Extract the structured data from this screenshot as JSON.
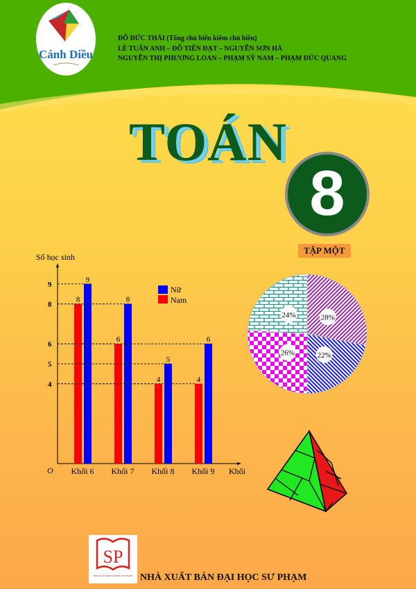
{
  "series_title": "Cánh Diều",
  "authors": [
    "ĐỖ ĐỨC THÁI (Tổng chủ biên kiêm chủ biên)",
    "LÊ TUẤN ANH – ĐỖ TIẾN ĐẠT – NGUYỄN SƠN HÀ",
    "NGUYỄN THỊ PHƯƠNG LOAN – PHẠM SỸ NAM – PHẠM ĐỨC QUANG"
  ],
  "title": "TOÁN",
  "grade": "8",
  "volume": "TẬP MỘT",
  "publisher": {
    "name": "NHÀ XUẤT BẢN ĐẠI HỌC SƯ PHẠM",
    "logo_text": "NHÀ XUẤT BẢN ĐẠI HỌC SƯ PHẠM"
  },
  "colors": {
    "title": "#0c5a1c",
    "header_green": "#4cb000",
    "nu": "#0000ff",
    "nam": "#ff0000"
  },
  "chart_data": [
    {
      "type": "bar",
      "ylabel": "Số học sinh",
      "xlabel": "Khối",
      "origin_label": "O",
      "categories": [
        "Khối 6",
        "Khối 7",
        "Khối 8",
        "Khối 9"
      ],
      "yticks": [
        4,
        5,
        6,
        8,
        9
      ],
      "series": [
        {
          "name": "Nam",
          "values": [
            8,
            6,
            4,
            4
          ],
          "color": "#ff0000"
        },
        {
          "name": "Nữ",
          "values": [
            9,
            8,
            5,
            6
          ],
          "color": "#0000ff"
        }
      ],
      "legend": "top-right"
    },
    {
      "type": "pie",
      "slices": [
        {
          "label": "28%",
          "value": 28,
          "pattern": "purple-stripes"
        },
        {
          "label": "22%",
          "value": 22,
          "pattern": "blue-stripes"
        },
        {
          "label": "26%",
          "value": 26,
          "pattern": "magenta-checker"
        },
        {
          "label": "24%",
          "value": 24,
          "pattern": "teal-brick"
        }
      ]
    }
  ]
}
